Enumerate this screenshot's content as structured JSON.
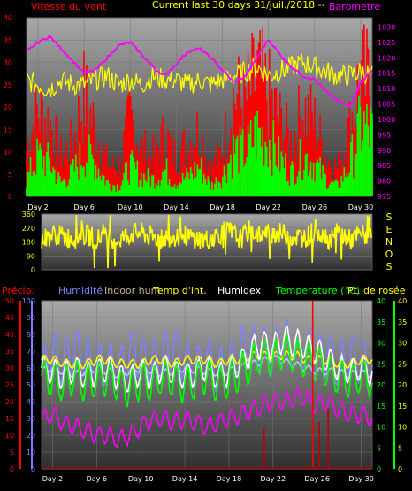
{
  "header": {
    "left_title": "Vitesse du vent",
    "center_title": "Current last 30 days 31/juil./2018 --",
    "right_title": "Barometre"
  },
  "colors": {
    "wind_speed": "#00ff00",
    "wind_gust": "#ff0000",
    "barometer": "#ff00ff",
    "temperature": "#ffff00",
    "indoor_temp": "#ffff00",
    "humidity": "#8080ff",
    "indoor_humidity": "#c0c0ff",
    "humidex": "#ffffff",
    "dew_point": "#00ff00",
    "precipitation": "#ff0000",
    "panel_bg_top": "#a8a8a8",
    "panel_bg_bottom": "#303030"
  },
  "chart_data": [
    {
      "type": "line",
      "panel": "wind-barometer",
      "x_tick_labels": [
        "Day 2",
        "Day 6",
        "Day 10",
        "Day 14",
        "Day 18",
        "Day 22",
        "Day 26",
        "Day 30"
      ],
      "xlim": [
        1,
        31
      ],
      "left_axis": {
        "label": "Vitesse du vent",
        "ticks": [
          0,
          5,
          10,
          15,
          20,
          25,
          30,
          35,
          40
        ],
        "ylim": [
          0,
          40
        ]
      },
      "right_axis": {
        "label": "Barometre",
        "ticks": [
          975,
          980,
          985,
          990,
          995,
          1000,
          1005,
          1010,
          1015,
          1020,
          1025,
          1030
        ],
        "ylim": [
          975,
          1033
        ]
      },
      "series": [
        {
          "name": "Barometre",
          "axis": "right",
          "x": [
            1,
            2,
            3,
            4,
            5,
            6,
            7,
            8,
            9,
            10,
            11,
            12,
            13,
            14,
            15,
            16,
            17,
            18,
            19,
            20,
            21,
            22,
            23,
            24,
            25,
            26,
            27,
            28,
            29,
            30,
            31
          ],
          "values": [
            1022,
            1025,
            1027,
            1023,
            1019,
            1015,
            1016,
            1020,
            1024,
            1025,
            1021,
            1017,
            1014,
            1018,
            1022,
            1023,
            1020,
            1016,
            1012,
            1014,
            1020,
            1026,
            1021,
            1017,
            1014,
            1013,
            1009,
            1006,
            1004,
            1012,
            1016
          ]
        },
        {
          "name": "wind average",
          "axis": "left",
          "x": [
            1,
            2,
            3,
            4,
            5,
            6,
            7,
            8,
            9,
            10,
            11,
            12,
            13,
            14,
            15,
            16,
            17,
            18,
            19,
            20,
            21,
            22,
            23,
            24,
            25,
            26,
            27,
            28,
            29,
            30,
            31
          ],
          "values": [
            5,
            12,
            10,
            4,
            7,
            13,
            10,
            4,
            3,
            9,
            6,
            5,
            8,
            4,
            6,
            9,
            3,
            6,
            14,
            13,
            19,
            17,
            11,
            7,
            12,
            10,
            5,
            3,
            9,
            21,
            19
          ]
        },
        {
          "name": "wind gust",
          "axis": "left",
          "x": [
            1,
            2,
            3,
            4,
            5,
            6,
            7,
            8,
            9,
            10,
            11,
            12,
            13,
            14,
            15,
            16,
            17,
            18,
            19,
            20,
            21,
            22,
            23,
            24,
            25,
            26,
            27,
            28,
            29,
            30,
            31
          ],
          "values": [
            14,
            26,
            22,
            12,
            16,
            30,
            20,
            10,
            8,
            24,
            14,
            12,
            18,
            12,
            16,
            20,
            8,
            14,
            30,
            28,
            36,
            30,
            22,
            16,
            26,
            22,
            12,
            8,
            20,
            36,
            32
          ]
        },
        {
          "name": "Temperature",
          "axis": "left",
          "x": [
            1,
            2,
            3,
            4,
            5,
            6,
            7,
            8,
            9,
            10,
            11,
            12,
            13,
            14,
            15,
            16,
            17,
            18,
            19,
            20,
            21,
            22,
            23,
            24,
            25,
            26,
            27,
            28,
            29,
            30,
            31
          ],
          "values": [
            26,
            25,
            24,
            26,
            25,
            25,
            26,
            27,
            25,
            26,
            25,
            27,
            26,
            26,
            25,
            26,
            25,
            26,
            27,
            28,
            29,
            27,
            28,
            29,
            30,
            29,
            28,
            27,
            27,
            28,
            27
          ]
        }
      ]
    },
    {
      "type": "line",
      "panel": "wind-direction",
      "xlim": [
        1,
        31
      ],
      "left_axis": {
        "ticks": [
          0,
          90,
          180,
          270,
          360
        ],
        "ylim": [
          0,
          360
        ]
      },
      "right_labels": [
        "S",
        "E",
        "N",
        "O",
        "S"
      ],
      "series": [
        {
          "name": "direction",
          "x": [
            1,
            2,
            3,
            4,
            5,
            6,
            7,
            8,
            9,
            10,
            11,
            12,
            13,
            14,
            15,
            16,
            17,
            18,
            19,
            20,
            21,
            22,
            23,
            24,
            25,
            26,
            27,
            28,
            29,
            30,
            31
          ],
          "values": [
            190,
            230,
            215,
            205,
            225,
            200,
            210,
            195,
            230,
            240,
            210,
            200,
            220,
            215,
            205,
            195,
            230,
            250,
            200,
            260,
            220,
            240,
            230,
            210,
            215,
            260,
            200,
            240,
            190,
            230,
            210
          ]
        }
      ]
    },
    {
      "type": "line",
      "panel": "temperature-humidity",
      "x_tick_labels": [
        "Day 2",
        "Day 6",
        "Day 10",
        "Day 14",
        "Day 18",
        "Day 22",
        "Day 26",
        "Day 30"
      ],
      "xlim": [
        1,
        31
      ],
      "legend": [
        "Précip.",
        "Humidité",
        "Indoor hum",
        "Temp d'int.",
        "Humidex",
        "Temperature (°C)",
        "Pt. de rosée"
      ],
      "left_axis_outer": {
        "label": "Précip.",
        "ticks": [
          0,
          5,
          10,
          15,
          20,
          25,
          30,
          35,
          40,
          45,
          50
        ],
        "ylim": [
          0,
          50
        ]
      },
      "left_axis_inner": {
        "label": "Humidité",
        "ticks": [
          0,
          10,
          20,
          30,
          40,
          50,
          60,
          70,
          80,
          90,
          100
        ],
        "ylim": [
          0,
          100
        ]
      },
      "right_axis_inner": {
        "label": "Temperature (°C)",
        "ticks": [
          0,
          5,
          10,
          15,
          20,
          25,
          30,
          35,
          40
        ],
        "ylim": [
          0,
          40
        ]
      },
      "right_axis_outer": {
        "label": "Pt. de rosée",
        "ticks": [
          0,
          5,
          10,
          15,
          20,
          25,
          30,
          35,
          40
        ],
        "ylim": [
          0,
          40
        ]
      },
      "series": [
        {
          "name": "Humidité",
          "axis": "left_inner",
          "x": [
            1,
            2,
            3,
            4,
            5,
            6,
            7,
            8,
            9,
            10,
            11,
            12,
            13,
            14,
            15,
            16,
            17,
            18,
            19,
            20,
            21,
            22,
            23,
            24,
            25,
            26,
            27,
            28,
            29,
            30,
            31
          ],
          "values": [
            60,
            68,
            62,
            72,
            66,
            60,
            64,
            58,
            70,
            66,
            62,
            68,
            72,
            64,
            60,
            66,
            58,
            62,
            70,
            74,
            72,
            68,
            76,
            72,
            70,
            66,
            68,
            62,
            66,
            64,
            62
          ]
        },
        {
          "name": "Indoor hum",
          "axis": "left_inner",
          "x": [
            1,
            2,
            3,
            4,
            5,
            6,
            7,
            8,
            9,
            10,
            11,
            12,
            13,
            14,
            15,
            16,
            17,
            18,
            19,
            20,
            21,
            22,
            23,
            24,
            25,
            26,
            27,
            28,
            29,
            30,
            31
          ],
          "values": [
            58,
            60,
            58,
            56,
            58,
            60,
            58,
            56,
            58,
            60,
            58,
            57,
            58,
            60,
            59,
            58,
            57,
            58,
            60,
            62,
            64,
            66,
            64,
            62,
            60,
            58,
            58,
            57,
            56,
            57,
            56
          ]
        },
        {
          "name": "Temp d'int.",
          "axis": "right_inner",
          "x": [
            1,
            2,
            3,
            4,
            5,
            6,
            7,
            8,
            9,
            10,
            11,
            12,
            13,
            14,
            15,
            16,
            17,
            18,
            19,
            20,
            21,
            22,
            23,
            24,
            25,
            26,
            27,
            28,
            29,
            30,
            31
          ],
          "values": [
            26,
            26,
            25,
            25,
            25,
            26,
            26,
            25,
            25,
            25,
            26,
            26,
            25,
            26,
            26,
            26,
            25,
            26,
            26,
            27,
            27,
            27,
            27,
            27,
            26,
            26,
            26,
            25,
            25,
            26,
            26
          ]
        },
        {
          "name": "Humidex",
          "axis": "right_inner",
          "x": [
            1,
            2,
            3,
            4,
            5,
            6,
            7,
            8,
            9,
            10,
            11,
            12,
            13,
            14,
            15,
            16,
            17,
            18,
            19,
            20,
            21,
            22,
            23,
            24,
            25,
            26,
            27,
            28,
            29,
            30,
            31
          ],
          "values": [
            24,
            23,
            22,
            24,
            22,
            23,
            24,
            22,
            21,
            23,
            22,
            24,
            23,
            22,
            23,
            24,
            22,
            23,
            25,
            28,
            30,
            29,
            31,
            30,
            29,
            28,
            26,
            24,
            23,
            24,
            23
          ]
        },
        {
          "name": "Temperature (°C)",
          "axis": "right_inner",
          "x": [
            1,
            2,
            3,
            4,
            5,
            6,
            7,
            8,
            9,
            10,
            11,
            12,
            13,
            14,
            15,
            16,
            17,
            18,
            19,
            20,
            21,
            22,
            23,
            24,
            25,
            26,
            27,
            28,
            29,
            30,
            31
          ],
          "values": [
            22,
            21,
            20,
            22,
            20,
            21,
            22,
            20,
            19,
            21,
            20,
            22,
            21,
            20,
            21,
            22,
            20,
            21,
            23,
            25,
            27,
            26,
            28,
            27,
            26,
            25,
            23,
            22,
            21,
            22,
            21
          ]
        },
        {
          "name": "Pt. de rosée",
          "axis": "right_outer",
          "x": [
            1,
            2,
            3,
            4,
            5,
            6,
            7,
            8,
            9,
            10,
            11,
            12,
            13,
            14,
            15,
            16,
            17,
            18,
            19,
            20,
            21,
            22,
            23,
            24,
            25,
            26,
            27,
            28,
            29,
            30,
            31
          ],
          "values": [
            12,
            13,
            11,
            10,
            9,
            8,
            8,
            7,
            8,
            10,
            12,
            12,
            11,
            12,
            11,
            10,
            11,
            12,
            13,
            14,
            15,
            16,
            16,
            17,
            17,
            15,
            16,
            14,
            13,
            13,
            12
          ]
        },
        {
          "name": "Précip.",
          "axis": "left_outer",
          "type": "bar",
          "x": [
            21.2,
            25.2,
            25.6,
            26.2,
            27
          ],
          "values": [
            12,
            1,
            50,
            14,
            18
          ]
        }
      ]
    }
  ]
}
